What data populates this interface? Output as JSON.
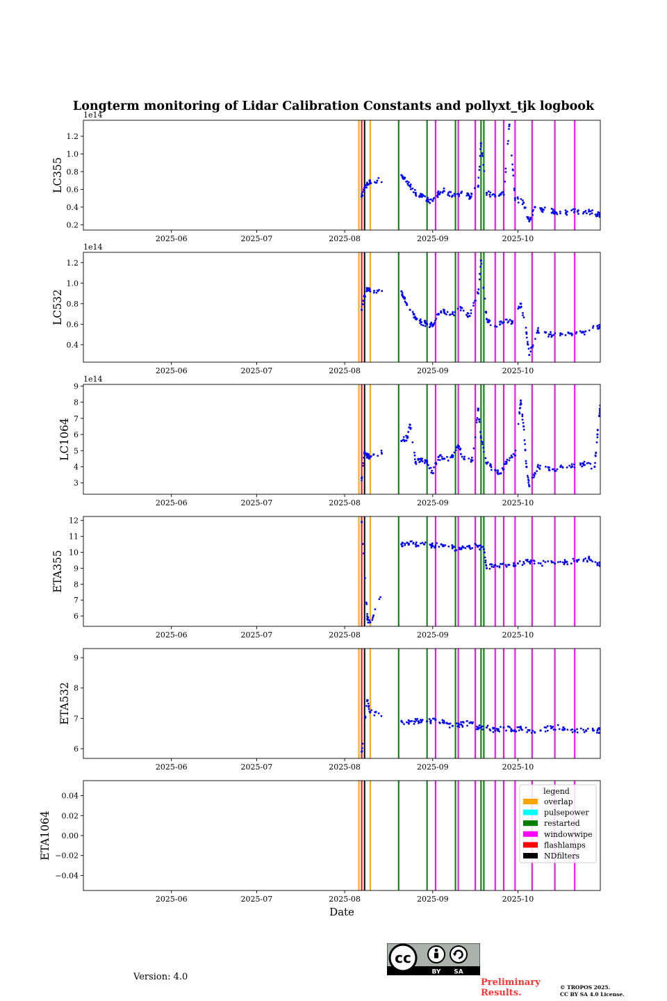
{
  "chart_data": {
    "type": "scatter",
    "title": "Longterm monitoring of Lidar Calibration Constants and pollyxt_tjk logbook",
    "xlabel": "Date",
    "x_range": [
      "2025-05-01",
      "2025-10-30"
    ],
    "x_ticks": [
      {
        "date": "2025-06-01",
        "label": "2025-06"
      },
      {
        "date": "2025-07-01",
        "label": "2025-07"
      },
      {
        "date": "2025-08-01",
        "label": "2025-08"
      },
      {
        "date": "2025-09-01",
        "label": "2025-09"
      },
      {
        "date": "2025-10-01",
        "label": "2025-10"
      }
    ],
    "panels": [
      {
        "name": "LC355",
        "ylabel": "LC355",
        "offset": "1e14",
        "ylim": [
          0.14,
          1.38
        ],
        "yticks": [
          0.2,
          0.4,
          0.6,
          0.8,
          1.0,
          1.2
        ],
        "tick_labels": [
          "0.2",
          "0.4",
          "0.6",
          "0.8",
          "1.0",
          "1.2"
        ],
        "points": [
          [
            "2025-08-07",
            0.52
          ],
          [
            "2025-08-08",
            0.62
          ],
          [
            "2025-08-09",
            0.66
          ],
          [
            "2025-08-10",
            0.68
          ],
          [
            "2025-08-21",
            0.76
          ],
          [
            "2025-08-22",
            0.72
          ],
          [
            "2025-08-24",
            0.64
          ],
          [
            "2025-08-26",
            0.56
          ],
          [
            "2025-08-28",
            0.52
          ],
          [
            "2025-08-30",
            0.48
          ],
          [
            "2025-09-01",
            0.47
          ],
          [
            "2025-09-03",
            0.55
          ],
          [
            "2025-09-05",
            0.58
          ],
          [
            "2025-09-08",
            0.53
          ],
          [
            "2025-09-11",
            0.56
          ],
          [
            "2025-09-14",
            0.52
          ],
          [
            "2025-09-17",
            0.63
          ],
          [
            "2025-09-18",
            1.12
          ],
          [
            "2025-09-20",
            0.56
          ],
          [
            "2025-09-23",
            0.52
          ],
          [
            "2025-09-26",
            0.54
          ],
          [
            "2025-09-28",
            1.33
          ],
          [
            "2025-09-30",
            0.5
          ],
          [
            "2025-10-03",
            0.45
          ],
          [
            "2025-10-05",
            0.24
          ],
          [
            "2025-10-07",
            0.4
          ],
          [
            "2025-10-10",
            0.37
          ],
          [
            "2025-10-14",
            0.35
          ],
          [
            "2025-10-18",
            0.34
          ],
          [
            "2025-10-22",
            0.35
          ],
          [
            "2025-10-26",
            0.35
          ],
          [
            "2025-10-29",
            0.32
          ]
        ]
      },
      {
        "name": "LC532",
        "ylabel": "LC532",
        "offset": "1e14",
        "ylim": [
          0.23,
          1.3
        ],
        "yticks": [
          0.4,
          0.6,
          0.8,
          1.0,
          1.2
        ],
        "tick_labels": [
          "0.4",
          "0.6",
          "0.8",
          "1.0",
          "1.2"
        ],
        "points": [
          [
            "2025-08-07",
            0.74
          ],
          [
            "2025-08-08",
            0.88
          ],
          [
            "2025-08-09",
            0.95
          ],
          [
            "2025-08-10",
            0.92
          ],
          [
            "2025-08-21",
            0.92
          ],
          [
            "2025-08-22",
            0.85
          ],
          [
            "2025-08-24",
            0.74
          ],
          [
            "2025-08-26",
            0.66
          ],
          [
            "2025-08-28",
            0.62
          ],
          [
            "2025-08-30",
            0.6
          ],
          [
            "2025-09-01",
            0.59
          ],
          [
            "2025-09-03",
            0.7
          ],
          [
            "2025-09-05",
            0.72
          ],
          [
            "2025-09-08",
            0.7
          ],
          [
            "2025-09-11",
            0.76
          ],
          [
            "2025-09-14",
            0.68
          ],
          [
            "2025-09-17",
            0.9
          ],
          [
            "2025-09-18",
            1.22
          ],
          [
            "2025-09-20",
            0.65
          ],
          [
            "2025-09-23",
            0.58
          ],
          [
            "2025-09-26",
            0.62
          ],
          [
            "2025-09-29",
            0.62
          ],
          [
            "2025-10-02",
            0.8
          ],
          [
            "2025-10-04",
            0.52
          ],
          [
            "2025-10-05",
            0.3
          ],
          [
            "2025-10-08",
            0.54
          ],
          [
            "2025-10-12",
            0.5
          ],
          [
            "2025-10-16",
            0.51
          ],
          [
            "2025-10-20",
            0.5
          ],
          [
            "2025-10-24",
            0.52
          ],
          [
            "2025-10-29",
            0.58
          ]
        ]
      },
      {
        "name": "LC1064",
        "ylabel": "LC1064",
        "offset": "1e14",
        "ylim": [
          2.3,
          9.1
        ],
        "yticks": [
          3,
          4,
          5,
          6,
          7,
          8,
          9
        ],
        "tick_labels": [
          "3",
          "4",
          "5",
          "6",
          "7",
          "8",
          "9"
        ],
        "points": [
          [
            "2025-08-07",
            3.3
          ],
          [
            "2025-08-08",
            4.9
          ],
          [
            "2025-08-09",
            4.7
          ],
          [
            "2025-08-10",
            4.6
          ],
          [
            "2025-08-21",
            5.6
          ],
          [
            "2025-08-23",
            5.8
          ],
          [
            "2025-08-24",
            6.6
          ],
          [
            "2025-08-26",
            4.3
          ],
          [
            "2025-08-28",
            4.4
          ],
          [
            "2025-08-30",
            4.3
          ],
          [
            "2025-09-01",
            3.6
          ],
          [
            "2025-09-03",
            4.6
          ],
          [
            "2025-09-05",
            4.5
          ],
          [
            "2025-09-08",
            4.6
          ],
          [
            "2025-09-10",
            5.3
          ],
          [
            "2025-09-12",
            4.5
          ],
          [
            "2025-09-15",
            4.4
          ],
          [
            "2025-09-17",
            7.6
          ],
          [
            "2025-09-18",
            5.8
          ],
          [
            "2025-09-20",
            4.2
          ],
          [
            "2025-09-23",
            3.8
          ],
          [
            "2025-09-25",
            3.6
          ],
          [
            "2025-09-27",
            4.3
          ],
          [
            "2025-09-30",
            4.7
          ],
          [
            "2025-10-02",
            8.1
          ],
          [
            "2025-10-03",
            6.5
          ],
          [
            "2025-10-04",
            4.0
          ],
          [
            "2025-10-05",
            2.8
          ],
          [
            "2025-10-08",
            4.0
          ],
          [
            "2025-10-12",
            3.8
          ],
          [
            "2025-10-16",
            4.0
          ],
          [
            "2025-10-20",
            4.0
          ],
          [
            "2025-10-24",
            4.2
          ],
          [
            "2025-10-28",
            4.0
          ],
          [
            "2025-10-29",
            6.0
          ],
          [
            "2025-10-30",
            7.8
          ]
        ]
      },
      {
        "name": "ETA355",
        "ylabel": "ETA355",
        "offset": "",
        "ylim": [
          5.35,
          12.25
        ],
        "yticks": [
          6,
          7,
          8,
          9,
          10,
          11,
          12
        ],
        "tick_labels": [
          "6",
          "7",
          "8",
          "9",
          "10",
          "11",
          "12"
        ],
        "points": [
          [
            "2025-08-07",
            11.9
          ],
          [
            "2025-08-09",
            5.8
          ],
          [
            "2025-08-10",
            5.6
          ],
          [
            "2025-08-21",
            10.5
          ],
          [
            "2025-08-23",
            10.6
          ],
          [
            "2025-08-26",
            10.5
          ],
          [
            "2025-08-29",
            10.5
          ],
          [
            "2025-09-01",
            10.4
          ],
          [
            "2025-09-04",
            10.5
          ],
          [
            "2025-09-08",
            10.3
          ],
          [
            "2025-09-11",
            10.2
          ],
          [
            "2025-09-14",
            10.3
          ],
          [
            "2025-09-17",
            10.4
          ],
          [
            "2025-09-19",
            10.2
          ],
          [
            "2025-09-20",
            9.0
          ],
          [
            "2025-09-23",
            9.2
          ],
          [
            "2025-09-27",
            9.1
          ],
          [
            "2025-10-01",
            9.3
          ],
          [
            "2025-10-05",
            9.4
          ],
          [
            "2025-10-09",
            9.3
          ],
          [
            "2025-10-14",
            9.3
          ],
          [
            "2025-10-18",
            9.4
          ],
          [
            "2025-10-22",
            9.5
          ],
          [
            "2025-10-26",
            9.6
          ],
          [
            "2025-10-29",
            9.2
          ]
        ]
      },
      {
        "name": "ETA532",
        "ylabel": "ETA532",
        "offset": "",
        "ylim": [
          5.68,
          9.3
        ],
        "yticks": [
          6,
          7,
          8,
          9
        ],
        "tick_labels": [
          "6",
          "7",
          "8",
          "9"
        ],
        "points": [
          [
            "2025-08-07",
            5.9
          ],
          [
            "2025-08-09",
            7.6
          ],
          [
            "2025-08-10",
            7.2
          ],
          [
            "2025-08-21",
            6.9
          ],
          [
            "2025-08-24",
            6.9
          ],
          [
            "2025-08-27",
            6.9
          ],
          [
            "2025-08-30",
            6.9
          ],
          [
            "2025-09-02",
            6.95
          ],
          [
            "2025-09-05",
            6.85
          ],
          [
            "2025-09-08",
            6.75
          ],
          [
            "2025-09-11",
            6.8
          ],
          [
            "2025-09-14",
            6.85
          ],
          [
            "2025-09-17",
            6.7
          ],
          [
            "2025-09-20",
            6.7
          ],
          [
            "2025-09-23",
            6.6
          ],
          [
            "2025-09-26",
            6.7
          ],
          [
            "2025-09-29",
            6.6
          ],
          [
            "2025-10-02",
            6.7
          ],
          [
            "2025-10-05",
            6.6
          ],
          [
            "2025-10-09",
            6.6
          ],
          [
            "2025-10-13",
            6.7
          ],
          [
            "2025-10-17",
            6.7
          ],
          [
            "2025-10-21",
            6.6
          ],
          [
            "2025-10-25",
            6.6
          ],
          [
            "2025-10-29",
            6.6
          ]
        ]
      },
      {
        "name": "ETA1064",
        "ylabel": "ETA1064",
        "offset": "",
        "ylim": [
          -0.055,
          0.055
        ],
        "yticks": [
          -0.04,
          -0.02,
          0.0,
          0.02,
          0.04
        ],
        "tick_labels": [
          "−0.04",
          "−0.02",
          "0.00",
          "0.02",
          "0.04"
        ],
        "points": []
      }
    ],
    "events": {
      "overlap": [
        "2025-08-06",
        "2025-08-10"
      ],
      "pulsepower": [],
      "restarted": [
        "2025-08-20",
        "2025-08-30",
        "2025-09-09",
        "2025-09-18",
        "2025-09-19"
      ],
      "windowwipe": [
        "2025-09-02",
        "2025-09-10",
        "2025-09-16",
        "2025-09-23",
        "2025-09-26",
        "2025-09-30",
        "2025-10-06",
        "2025-10-14",
        "2025-10-21"
      ],
      "flashlamps": [
        "2025-08-07"
      ],
      "NDfilters": [
        "2025-08-08"
      ]
    },
    "legend": {
      "title": "legend",
      "position": "upper-right",
      "entries": [
        {
          "key": "overlap",
          "label": "overlap",
          "color": "#ffa500"
        },
        {
          "key": "pulsepower",
          "label": "pulsepower",
          "color": "#00ffff"
        },
        {
          "key": "restarted",
          "label": "restarted",
          "color": "#008000"
        },
        {
          "key": "windowwipe",
          "label": "windowwipe",
          "color": "#ff00ff"
        },
        {
          "key": "flashlamps",
          "label": "flashlamps",
          "color": "#ff0000"
        },
        {
          "key": "NDfilters",
          "label": "NDfilters",
          "color": "#000000"
        }
      ]
    },
    "point_color": "#0000ff"
  },
  "footer": {
    "version": "Version: 4.0",
    "preliminary": "Preliminary Results.",
    "copyright_line1": "© TROPOS 2025.",
    "copyright_line2": "CC BY SA 4.0 License.",
    "badge": {
      "by": "BY",
      "sa": "SA",
      "cc": "cc"
    }
  }
}
